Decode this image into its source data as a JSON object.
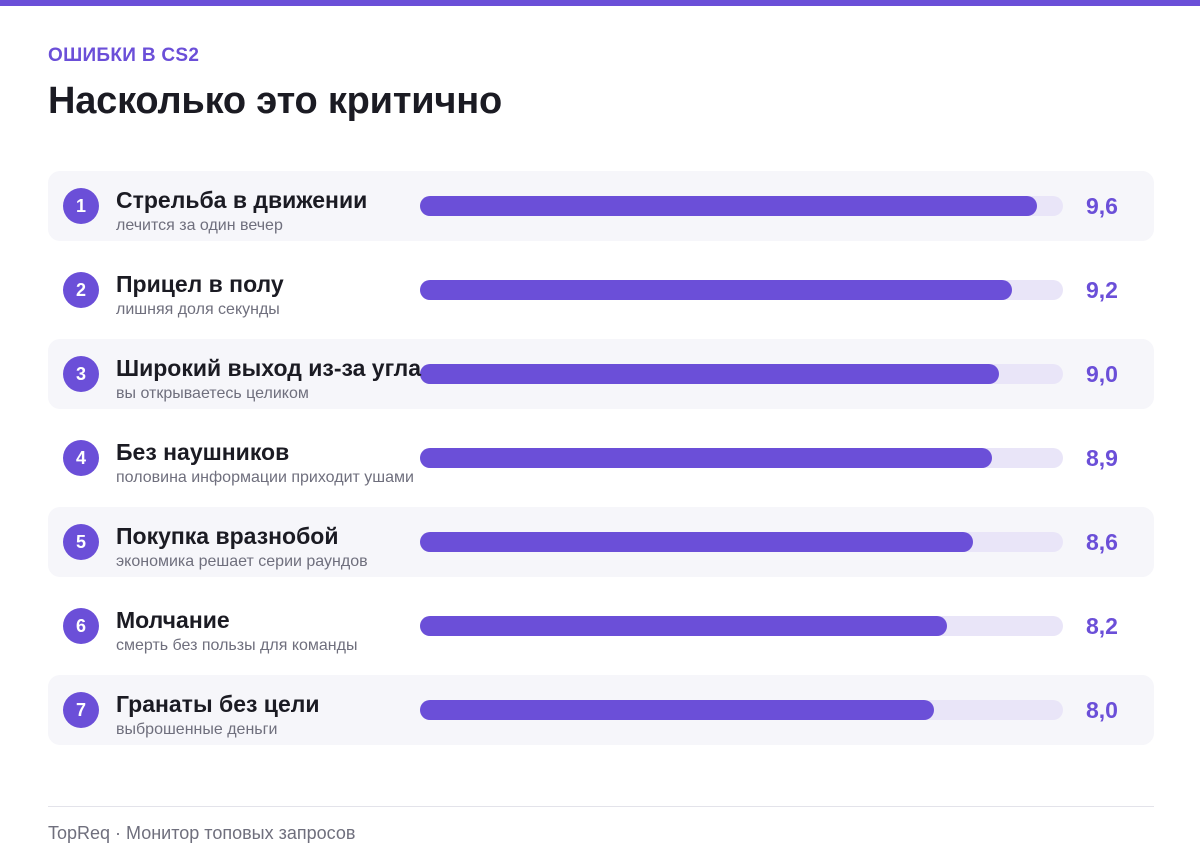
{
  "header": {
    "kicker": "ОШИБКИ В CS2",
    "title": "Насколько это критично"
  },
  "colors": {
    "accent": "#6b4fd8",
    "track": "#e9e5f8",
    "row_shade": "#f6f6fa"
  },
  "chart_data": {
    "type": "bar",
    "orientation": "horizontal",
    "title": "Насколько это критично",
    "xlim": [
      0,
      10
    ],
    "grid": false,
    "categories": [
      "Стрельба в движении",
      "Прицел в полу",
      "Широкий выход из-за угла",
      "Без наушников",
      "Покупка вразнобой",
      "Молчание",
      "Гранаты без цели"
    ],
    "values": [
      9.6,
      9.2,
      9.0,
      8.9,
      8.6,
      8.2,
      8.0
    ],
    "items": [
      {
        "rank": "1",
        "label": "Стрельба в движении",
        "sub": "лечится за один вечер",
        "value": 9.6,
        "value_label": "9,6"
      },
      {
        "rank": "2",
        "label": "Прицел в полу",
        "sub": "лишняя доля секунды",
        "value": 9.2,
        "value_label": "9,2"
      },
      {
        "rank": "3",
        "label": "Широкий выход из-за угла",
        "sub": "вы открываетесь целиком",
        "value": 9.0,
        "value_label": "9,0"
      },
      {
        "rank": "4",
        "label": "Без наушников",
        "sub": "половина информации приходит ушами",
        "value": 8.9,
        "value_label": "8,9"
      },
      {
        "rank": "5",
        "label": "Покупка вразнобой",
        "sub": "экономика решает серии раундов",
        "value": 8.6,
        "value_label": "8,6"
      },
      {
        "rank": "6",
        "label": "Молчание",
        "sub": "смерть без пользы для команды",
        "value": 8.2,
        "value_label": "8,2"
      },
      {
        "rank": "7",
        "label": "Гранаты без цели",
        "sub": "выброшенные деньги",
        "value": 8.0,
        "value_label": "8,0"
      }
    ]
  },
  "footer": {
    "text": "TopReq · Монитор топовых запросов"
  }
}
